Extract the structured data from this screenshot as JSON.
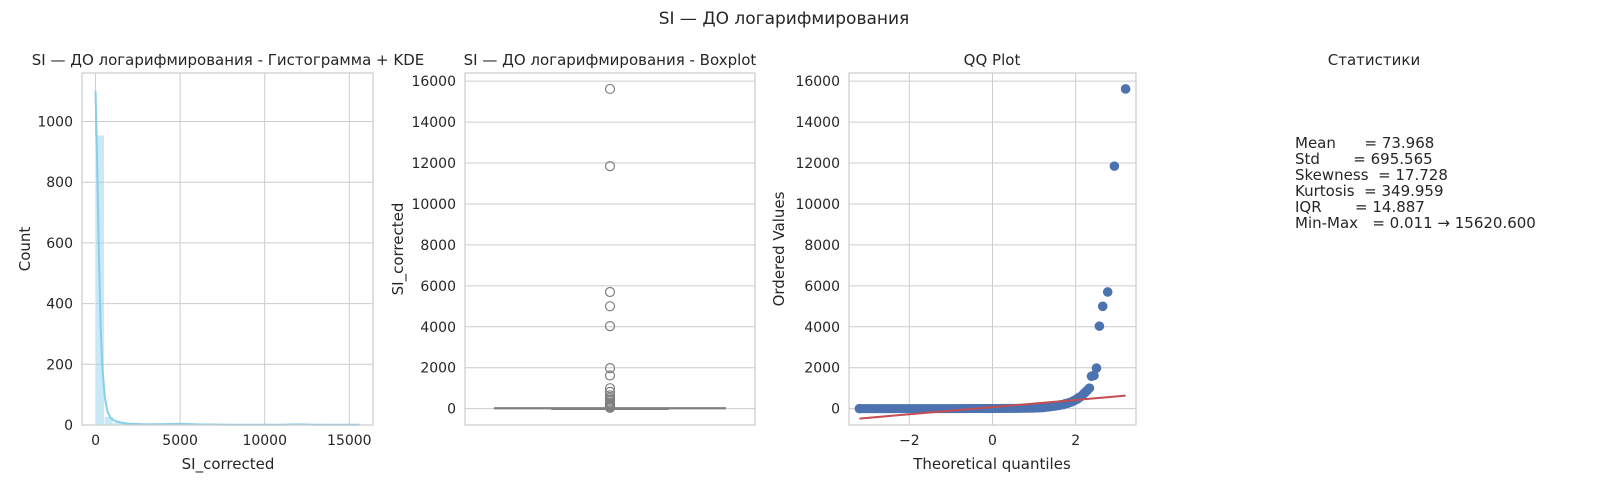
{
  "figure": {
    "suptitle": "SI — ДО логарифмирования"
  },
  "chart_data": [
    {
      "type": "bar",
      "title": "SI — ДО логарифмирования - Гистограмма + KDE",
      "xlabel": "SI_corrected",
      "ylabel": "Count",
      "xlim": [
        -800,
        16400
      ],
      "ylim": [
        0,
        1160
      ],
      "xticks": [
        0,
        5000,
        10000,
        15000
      ],
      "yticks": [
        0,
        200,
        400,
        600,
        800,
        1000
      ],
      "grid": true,
      "bar_color": "#87ceeb",
      "kde_color": "#87ceeb",
      "bin_width": 520.7,
      "bins": [
        {
          "x0": 0,
          "count": 955
        },
        {
          "x0": 520.7,
          "count": 28
        },
        {
          "x0": 1041.4,
          "count": 8
        },
        {
          "x0": 1562.1,
          "count": 4
        },
        {
          "x0": 2082.8,
          "count": 2
        },
        {
          "x0": 2603.5,
          "count": 1
        },
        {
          "x0": 3124.2,
          "count": 1
        },
        {
          "x0": 3644.9,
          "count": 1
        },
        {
          "x0": 4165.6,
          "count": 1
        },
        {
          "x0": 4686.3,
          "count": 1
        },
        {
          "x0": 5207,
          "count": 1
        },
        {
          "x0": 11714,
          "count": 1
        },
        {
          "x0": 15099.9,
          "count": 1
        }
      ],
      "kde": [
        {
          "x": 0,
          "y": 1100
        },
        {
          "x": 100,
          "y": 850
        },
        {
          "x": 200,
          "y": 560
        },
        {
          "x": 300,
          "y": 330
        },
        {
          "x": 400,
          "y": 190
        },
        {
          "x": 550,
          "y": 90
        },
        {
          "x": 700,
          "y": 45
        },
        {
          "x": 900,
          "y": 22
        },
        {
          "x": 1200,
          "y": 12
        },
        {
          "x": 1600,
          "y": 7
        },
        {
          "x": 2000,
          "y": 4
        },
        {
          "x": 3000,
          "y": 2
        },
        {
          "x": 4000,
          "y": 3
        },
        {
          "x": 5000,
          "y": 4
        },
        {
          "x": 6000,
          "y": 2
        },
        {
          "x": 8000,
          "y": 1
        },
        {
          "x": 11000,
          "y": 1
        },
        {
          "x": 12000,
          "y": 2
        },
        {
          "x": 13000,
          "y": 1
        },
        {
          "x": 15000,
          "y": 1
        },
        {
          "x": 15600,
          "y": 1
        }
      ]
    },
    {
      "type": "box",
      "title": "SI — ДО логарифмирования - Boxplot",
      "ylabel": "SI_corrected",
      "ylim": [
        -800,
        16400
      ],
      "yticks": [
        0,
        2000,
        4000,
        6000,
        8000,
        10000,
        12000,
        14000,
        16000
      ],
      "grid": true,
      "box_color": "#808080",
      "box": {
        "q1": 2,
        "median": 6,
        "q3": 17,
        "whisker_low": 0.011,
        "whisker_high": 39
      },
      "outliers": [
        15620.6,
        11850,
        5700,
        5000,
        4030,
        1980,
        1620,
        1000,
        820,
        650,
        540,
        460,
        380,
        300,
        240,
        190,
        150,
        120,
        95,
        75,
        60,
        48,
        42
      ]
    },
    {
      "type": "scatter",
      "title": "QQ Plot",
      "xlabel": "Theoretical quantiles",
      "ylabel": "Ordered Values",
      "xlim": [
        -3.45,
        3.45
      ],
      "ylim": [
        -800,
        16400
      ],
      "xticks": [
        -2,
        0,
        2
      ],
      "yticks": [
        0,
        2000,
        4000,
        6000,
        8000,
        10000,
        12000,
        14000,
        16000
      ],
      "grid": true,
      "point_color": "#4c72b0",
      "line_color": "#c44e52",
      "fit_line": {
        "slope": 175,
        "intercept": 74,
        "x_range": [
          -3.2,
          3.2
        ]
      },
      "tail_points": [
        {
          "x": 3.2,
          "y": 15620.6
        },
        {
          "x": 2.93,
          "y": 11850
        },
        {
          "x": 2.77,
          "y": 5700
        },
        {
          "x": 2.65,
          "y": 5000
        },
        {
          "x": 2.57,
          "y": 4030
        },
        {
          "x": 2.5,
          "y": 1980
        },
        {
          "x": 2.44,
          "y": 1620
        },
        {
          "x": 2.38,
          "y": 1580
        },
        {
          "x": 2.33,
          "y": 1000
        },
        {
          "x": 2.28,
          "y": 900
        },
        {
          "x": 2.24,
          "y": 820
        },
        {
          "x": 2.2,
          "y": 740
        },
        {
          "x": 2.16,
          "y": 650
        },
        {
          "x": 2.12,
          "y": 590
        },
        {
          "x": 2.08,
          "y": 540
        },
        {
          "x": 2.05,
          "y": 480
        },
        {
          "x": 2.02,
          "y": 460
        },
        {
          "x": 1.99,
          "y": 420
        },
        {
          "x": 1.95,
          "y": 380
        },
        {
          "x": 1.9,
          "y": 330
        },
        {
          "x": 1.85,
          "y": 300
        },
        {
          "x": 1.8,
          "y": 260
        },
        {
          "x": 1.75,
          "y": 240
        },
        {
          "x": 1.7,
          "y": 200
        },
        {
          "x": 1.65,
          "y": 190
        },
        {
          "x": 1.6,
          "y": 160
        },
        {
          "x": 1.55,
          "y": 150
        },
        {
          "x": 1.5,
          "y": 130
        },
        {
          "x": 1.45,
          "y": 120
        },
        {
          "x": 1.4,
          "y": 100
        }
      ],
      "body_curve": [
        {
          "x": -3.2,
          "y": 0.011
        },
        {
          "x": -3.0,
          "y": 0.05
        },
        {
          "x": -2.5,
          "y": 0.2
        },
        {
          "x": -2.0,
          "y": 0.5
        },
        {
          "x": -1.5,
          "y": 1
        },
        {
          "x": -1.0,
          "y": 2
        },
        {
          "x": -0.5,
          "y": 3.5
        },
        {
          "x": 0,
          "y": 6
        },
        {
          "x": 0.5,
          "y": 11
        },
        {
          "x": 1.0,
          "y": 25
        },
        {
          "x": 1.2,
          "y": 45
        },
        {
          "x": 1.35,
          "y": 80
        }
      ]
    }
  ],
  "stats_panel": {
    "title": "Статистики",
    "lines": [
      "Mean      = 73.968",
      "Std       = 695.565",
      "Skewness  = 17.728",
      "Kurtosis  = 349.959",
      "IQR       = 14.887",
      "Min-Max   = 0.011 → 15620.600"
    ]
  }
}
